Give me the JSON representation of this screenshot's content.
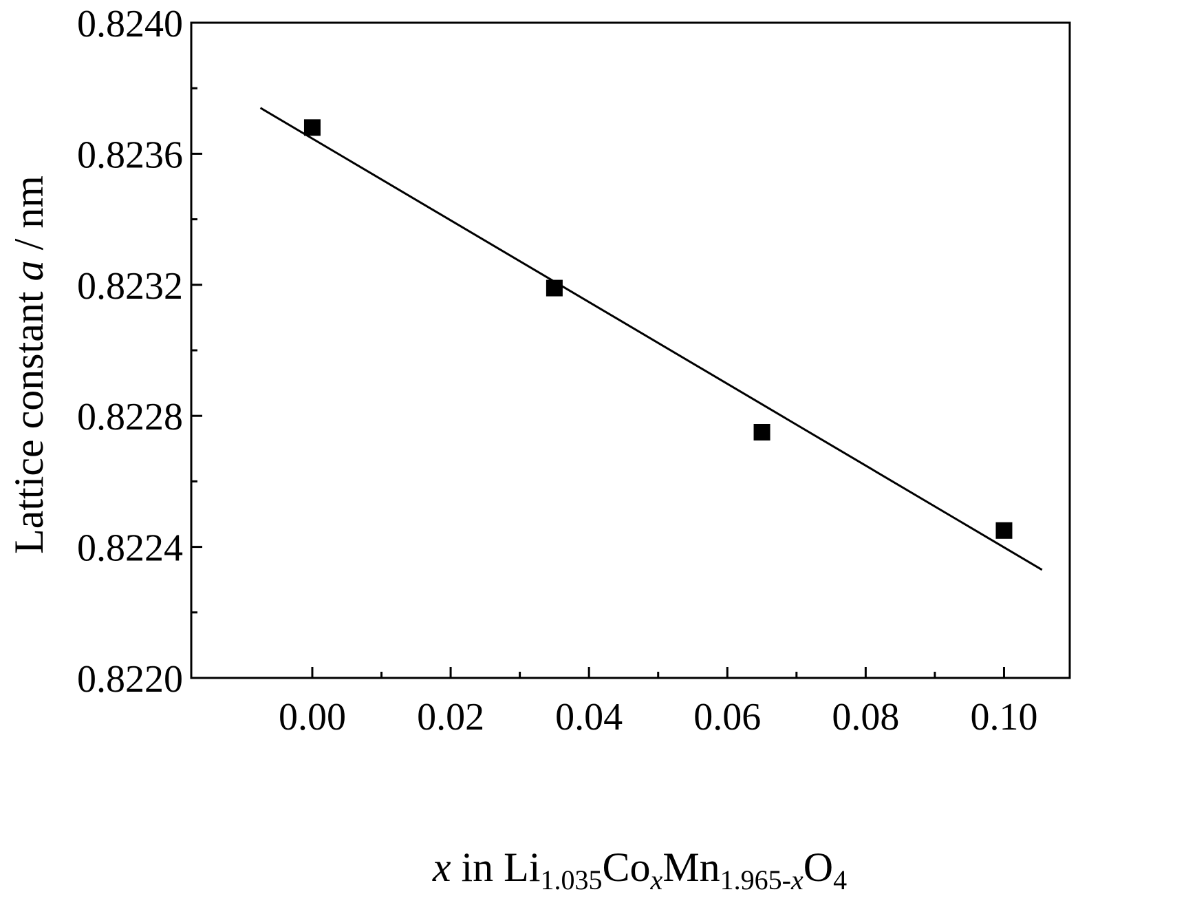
{
  "chart_data": {
    "type": "scatter",
    "title": "",
    "xlabel": {
      "var": "x",
      "text": " in Li",
      "sub1": "1.035",
      "co": "Co",
      "sub2": "x",
      "mn": "Mn",
      "sub3a": "1.965-",
      "sub3b": "x",
      "o": "O",
      "sub4": "4"
    },
    "ylabel": {
      "pre": "Lattice constant ",
      "var": "a",
      "post": " / nm"
    },
    "xlim": [
      -0.0175,
      0.1095
    ],
    "ylim": [
      0.822,
      0.824
    ],
    "xticks": [
      0.0,
      0.02,
      0.04,
      0.06,
      0.08,
      0.1
    ],
    "xtick_labels": [
      "0.00",
      "0.02",
      "0.04",
      "0.06",
      "0.08",
      "0.10"
    ],
    "yticks": [
      0.822,
      0.8224,
      0.8228,
      0.8232,
      0.8236,
      0.824
    ],
    "ytick_labels": [
      "0.8220",
      "0.8224",
      "0.8228",
      "0.8232",
      "0.8236",
      "0.8240"
    ],
    "x_minor_ticks": [
      0.01,
      0.03,
      0.05,
      0.07,
      0.09
    ],
    "y_minor_ticks": [
      0.8222,
      0.8226,
      0.823,
      0.8234,
      0.8238
    ],
    "grid": false,
    "legend": "none",
    "series": [
      {
        "marker": "filled-square",
        "color": "#000000",
        "points": [
          {
            "x": 0.0,
            "y": 0.82368
          },
          {
            "x": 0.035,
            "y": 0.82319
          },
          {
            "x": 0.065,
            "y": 0.82275
          },
          {
            "x": 0.1,
            "y": 0.82245
          }
        ]
      }
    ],
    "fit_line": {
      "color": "#000000",
      "x": [
        -0.0075,
        0.1055
      ],
      "y": [
        0.82374,
        0.82233
      ]
    }
  }
}
